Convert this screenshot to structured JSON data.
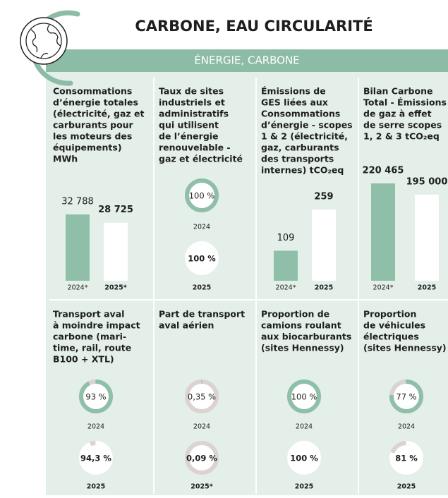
{
  "header": {
    "title": "CARBONE, EAU CIRCULARITÉ",
    "banner": "ÉNERGIE, CARBONE"
  },
  "panels": [
    {
      "kind": "bars",
      "heading": [
        "Consommations",
        "d’énergie totales",
        "(électricité, gaz et",
        "carburants pour",
        "les moteurs des",
        "équipements)",
        "MWh"
      ],
      "items": [
        {
          "year": "2024*",
          "value": {
            "value": 32788,
            "label": "32 788"
          },
          "bold": false
        },
        {
          "year": "2025*",
          "value": {
            "value": 28725,
            "label": "28 725"
          },
          "bold": true
        }
      ]
    },
    {
      "kind": "donuts",
      "heading": [
        "Taux de sites",
        "industriels et",
        "administratifs",
        "qui utilisent",
        "de l’énergie",
        "renouvelable -",
        "gaz et électricité"
      ],
      "items": [
        {
          "year": "2024",
          "value": {
            "value": 100,
            "label": "100 %"
          },
          "bold": false
        },
        {
          "year": "2025",
          "value": {
            "value": 100,
            "label": "100 %"
          },
          "bold": true
        }
      ]
    },
    {
      "kind": "bars",
      "heading": [
        "Émissions de",
        "GES liées aux",
        "Consommations",
        "d’énergie - scopes",
        "1 & 2 (électricité,",
        "gaz, carburants",
        "des transports",
        "internes) tCO₂eq"
      ],
      "items": [
        {
          "year": "2024*",
          "value": {
            "value": 109,
            "label": "109"
          },
          "bold": false
        },
        {
          "year": "2025",
          "value": {
            "value": 259,
            "label": "259"
          },
          "bold": true
        }
      ]
    },
    {
      "kind": "bars",
      "heading": [
        "Bilan Carbone",
        "Total - Émissions",
        "de gaz à effet",
        "de serre scopes",
        "1, 2 & 3 tCO₂eq"
      ],
      "items": [
        {
          "year": "2024*",
          "value": {
            "value": 220465,
            "label": "220 465"
          },
          "bold": true
        },
        {
          "year": "2025",
          "value": {
            "value": 195000,
            "label": "195 000"
          },
          "bold": true
        }
      ]
    },
    {
      "kind": "donuts",
      "heading": [
        "Transport aval",
        "à moindre impact",
        "carbone (mari-",
        "time, rail, route",
        "B100 + XTL)"
      ],
      "items": [
        {
          "year": "2024",
          "value": {
            "value": 93,
            "label": "93 %"
          },
          "bold": false
        },
        {
          "year": "2025",
          "value": {
            "value": 94.3,
            "label": "94,3 %"
          },
          "bold": true
        }
      ]
    },
    {
      "kind": "donuts",
      "heading": [
        "Part de transport",
        "aval aérien"
      ],
      "items": [
        {
          "year": "2024",
          "value": {
            "value": 0.35,
            "label": "0,35 %"
          },
          "bold": false
        },
        {
          "year": "2025*",
          "value": {
            "value": 0.09,
            "label": "0,09 %"
          },
          "bold": true
        }
      ]
    },
    {
      "kind": "donuts",
      "heading": [
        "Proportion de",
        "camions roulant",
        "aux biocarburants",
        "(sites Hennessy)"
      ],
      "items": [
        {
          "year": "2024",
          "value": {
            "value": 100,
            "label": "100 %"
          },
          "bold": false
        },
        {
          "year": "2025",
          "value": {
            "value": 100,
            "label": "100 %"
          },
          "bold": true
        }
      ]
    },
    {
      "kind": "donuts",
      "heading": [
        "Proportion",
        "de véhicules",
        "électriques",
        "(sites Hennessy)"
      ],
      "items": [
        {
          "year": "2024",
          "value": {
            "value": 77,
            "label": "77 %"
          },
          "bold": false
        },
        {
          "year": "2025",
          "value": {
            "value": 81,
            "label": "81 %"
          },
          "bold": true
        }
      ]
    }
  ]
}
